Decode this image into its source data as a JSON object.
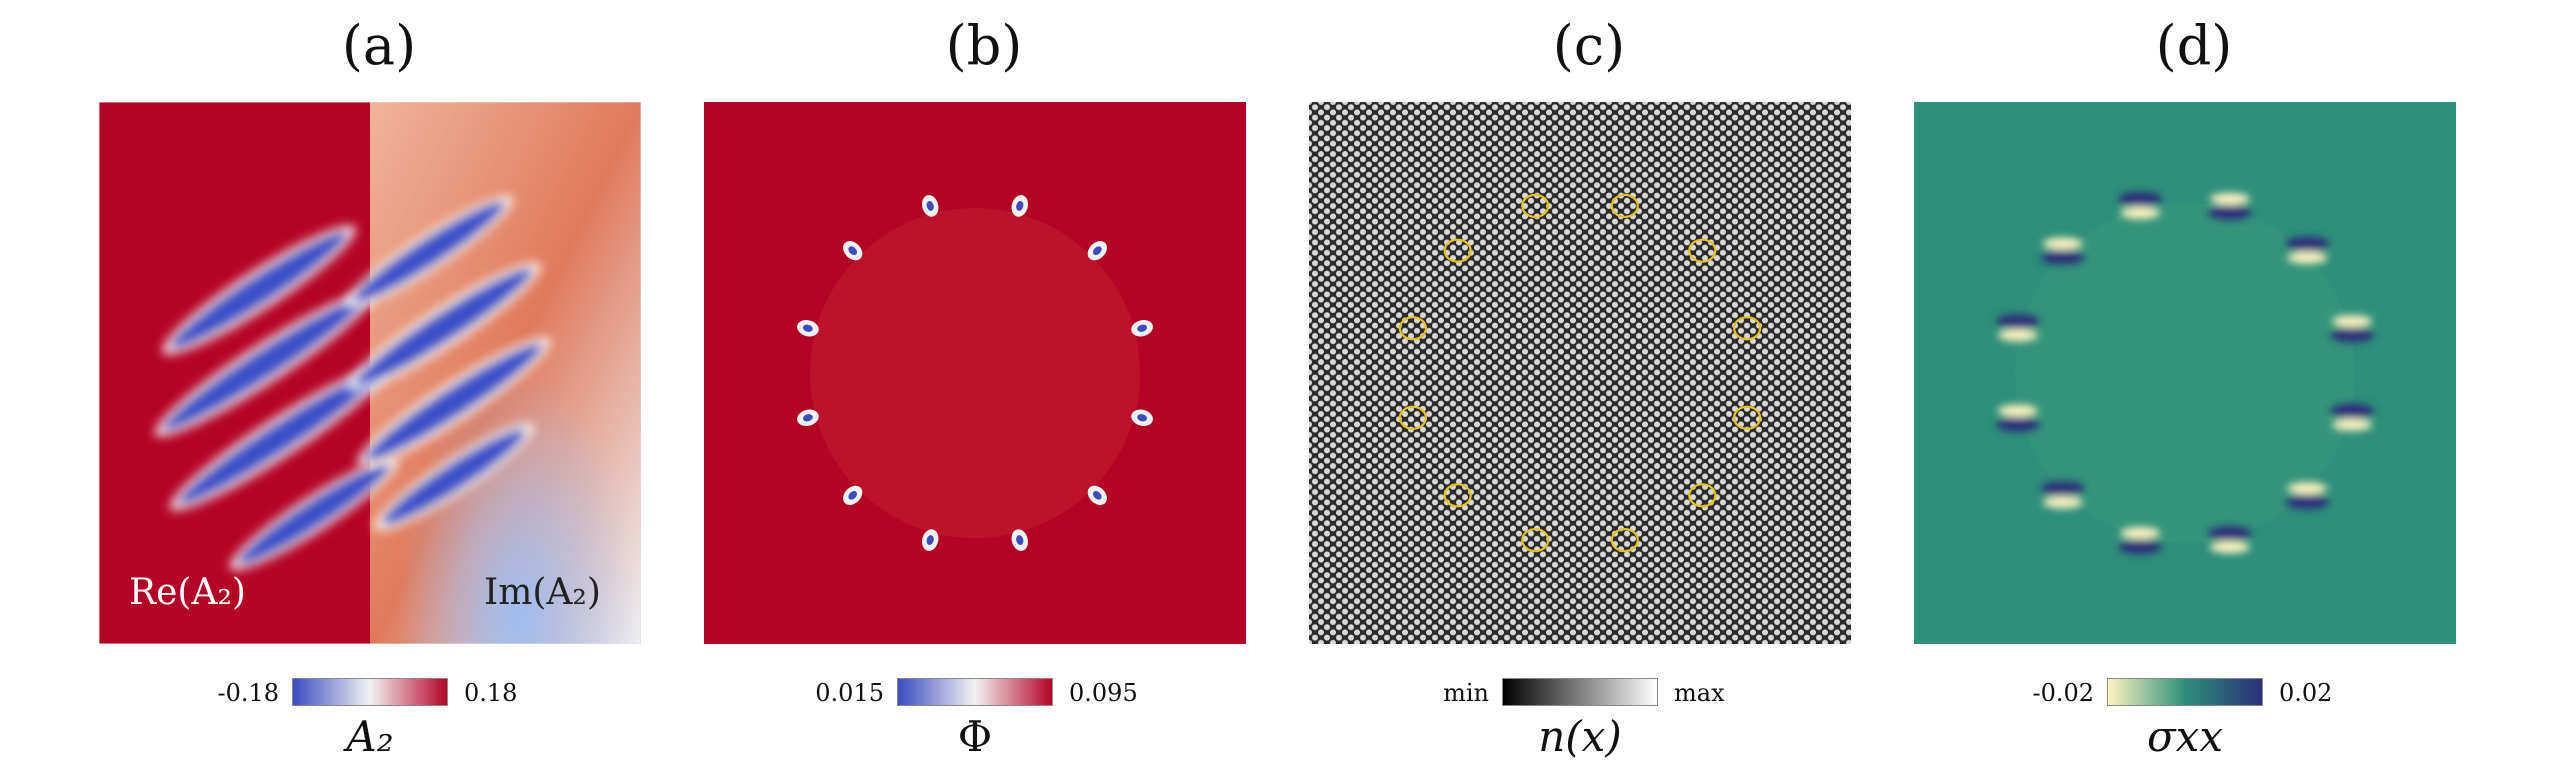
{
  "panels": [
    {
      "title": "(a)",
      "overlay_left": "Re(A₂)",
      "overlay_right": "Im(A₂)",
      "colorbar": {
        "min": "-0.18",
        "max": "0.18",
        "label": "A₂"
      },
      "colors": [
        "#3a4cc0",
        "#f2f2f2",
        "#b40426"
      ]
    },
    {
      "title": "(b)",
      "colorbar": {
        "min": "0.015",
        "max": "0.095",
        "label": "Φ"
      },
      "colors": [
        "#3a4cc0",
        "#f2f2f2",
        "#b40426"
      ]
    },
    {
      "title": "(c)",
      "colorbar": {
        "min": "min",
        "max": "max",
        "label": "n(x)"
      },
      "colors": [
        "#000000",
        "#ffffff"
      ],
      "defect_color": "#e6c21a"
    },
    {
      "title": "(d)",
      "colorbar": {
        "min": "-0.02",
        "max": "0.02",
        "label": "σxx"
      },
      "colors": [
        "#fdf3c0",
        "#2e8f7a",
        "#2a2f7a"
      ]
    }
  ]
}
